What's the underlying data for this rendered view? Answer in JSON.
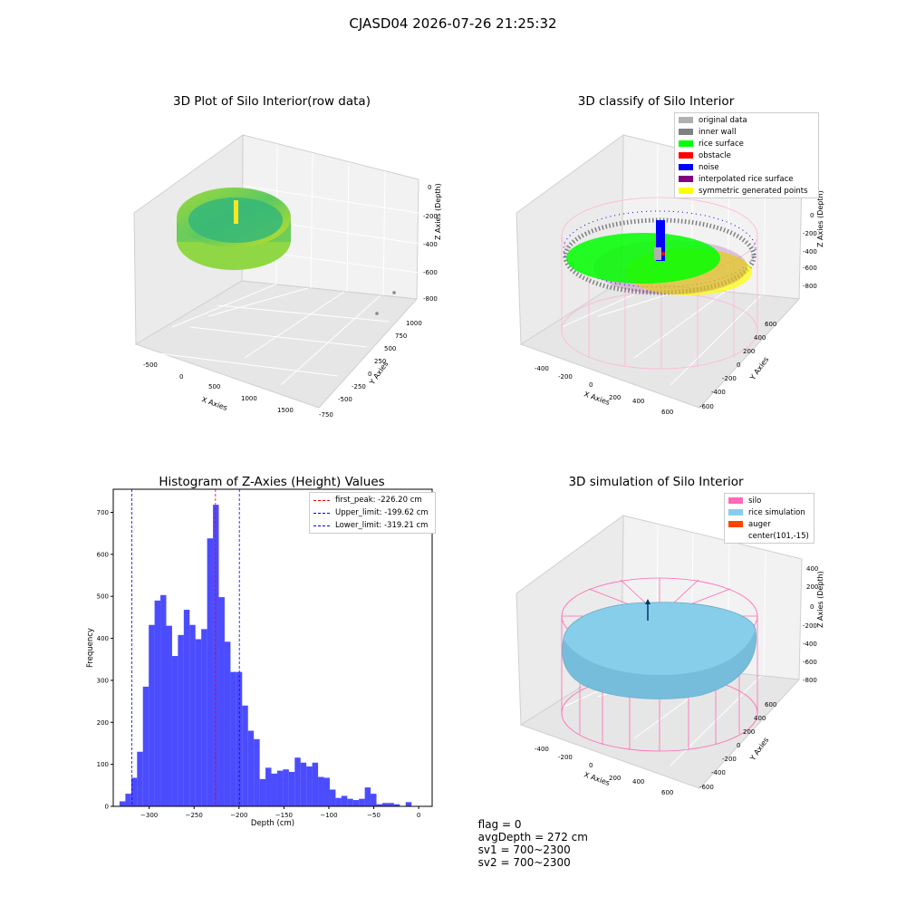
{
  "suptitle": "CJASD04 2026-07-26 21:25:32",
  "footer": {
    "flag": "flag = 0",
    "avg_depth": "avgDepth = 272 cm",
    "sv1": "sv1 = 700~2300",
    "sv2": "sv2 = 700~2300"
  },
  "chart_data": [
    {
      "type": "scatter",
      "title": "3D Plot of Silo Interior(row data)",
      "xlabel": "X Axies",
      "ylabel": "Y Axies",
      "zlabel": "Z Axies (Depth)",
      "xticks": [
        "-500",
        "0",
        "500",
        "1000",
        "1500"
      ],
      "yticks": [
        "1000",
        "750",
        "500",
        "250",
        "0",
        "-250",
        "-500",
        "-750"
      ],
      "zticks": [
        "0",
        "-200",
        "-400",
        "-600",
        "-800"
      ],
      "colormap": "viridis",
      "grid": true
    },
    {
      "type": "scatter",
      "title": "3D classify of Silo Interior",
      "xlabel": "X Axies",
      "ylabel": "Y Axies",
      "zlabel": "Z Axies (Depth)",
      "xticks": [
        "-400",
        "-200",
        "0",
        "200",
        "400",
        "600"
      ],
      "yticks": [
        "600",
        "400",
        "200",
        "0",
        "-200",
        "-400",
        "-600"
      ],
      "zticks": [
        "200",
        "0",
        "-200",
        "-400",
        "-600",
        "-800"
      ],
      "legend_position": "top-right",
      "legend": [
        {
          "label": "original data",
          "color": "#b0b0b0"
        },
        {
          "label": "inner wall",
          "color": "#808080"
        },
        {
          "label": "rice surface",
          "color": "#00ff00"
        },
        {
          "label": "obstacle",
          "color": "#ff0000"
        },
        {
          "label": "noise",
          "color": "#0000ff"
        },
        {
          "label": "interpolated rice surface",
          "color": "#800080"
        },
        {
          "label": "symmetric generated points",
          "color": "#ffff00"
        }
      ],
      "grid": true
    },
    {
      "type": "bar",
      "title": "Histogram of Z-Axies (Height) Values",
      "xlabel": "Depth (cm)",
      "ylabel": "Frequency",
      "xlim": [
        -340,
        15
      ],
      "ylim": [
        0,
        755
      ],
      "xticks": [
        -300,
        -250,
        -200,
        -150,
        -100,
        -50,
        0
      ],
      "yticks": [
        0,
        100,
        200,
        300,
        400,
        500,
        600,
        700
      ],
      "bin_start": -333,
      "bin_width": 6.5,
      "values": [
        12,
        30,
        68,
        130,
        285,
        432,
        490,
        503,
        430,
        358,
        408,
        468,
        432,
        398,
        422,
        638,
        718,
        498,
        392,
        320,
        320,
        240,
        180,
        160,
        65,
        92,
        78,
        85,
        88,
        82,
        116,
        104,
        95,
        104,
        70,
        68,
        40,
        20,
        25,
        18,
        15,
        18,
        45,
        30,
        5,
        8,
        8,
        5,
        0,
        10
      ],
      "bar_color": "#0000ff",
      "bar_alpha": 0.7,
      "vlines": [
        {
          "label": "first_peak: -226.20 cm",
          "x": -226.2,
          "color": "#ff0000",
          "style": "dashed"
        },
        {
          "label": "Upper_limit: -199.62 cm",
          "x": -199.62,
          "color": "#0000ff",
          "style": "dashed"
        },
        {
          "label": "Lower_limit: -319.21 cm",
          "x": -319.21,
          "color": "#0000ff",
          "style": "dashed"
        }
      ],
      "legend_position": "top-right"
    },
    {
      "type": "scatter",
      "title": "3D simulation of Silo Interior",
      "xlabel": "X Axies",
      "ylabel": "Y Axies",
      "zlabel": "Z Axies (Depth)",
      "xticks": [
        "-400",
        "-200",
        "0",
        "200",
        "400",
        "600"
      ],
      "yticks": [
        "600",
        "400",
        "200",
        "0",
        "-200",
        "-400",
        "-600"
      ],
      "zticks": [
        "400",
        "200",
        "0",
        "-200",
        "-400",
        "-600",
        "-800"
      ],
      "legend_position": "top-right",
      "legend": [
        {
          "label": "silo",
          "color": "#ff69b4"
        },
        {
          "label": "rice simulation",
          "color": "#87ceeb"
        },
        {
          "label": "auger",
          "color": "#ff4500"
        },
        {
          "label": "center(101,-15)",
          "color": ""
        }
      ],
      "grid": true
    }
  ]
}
